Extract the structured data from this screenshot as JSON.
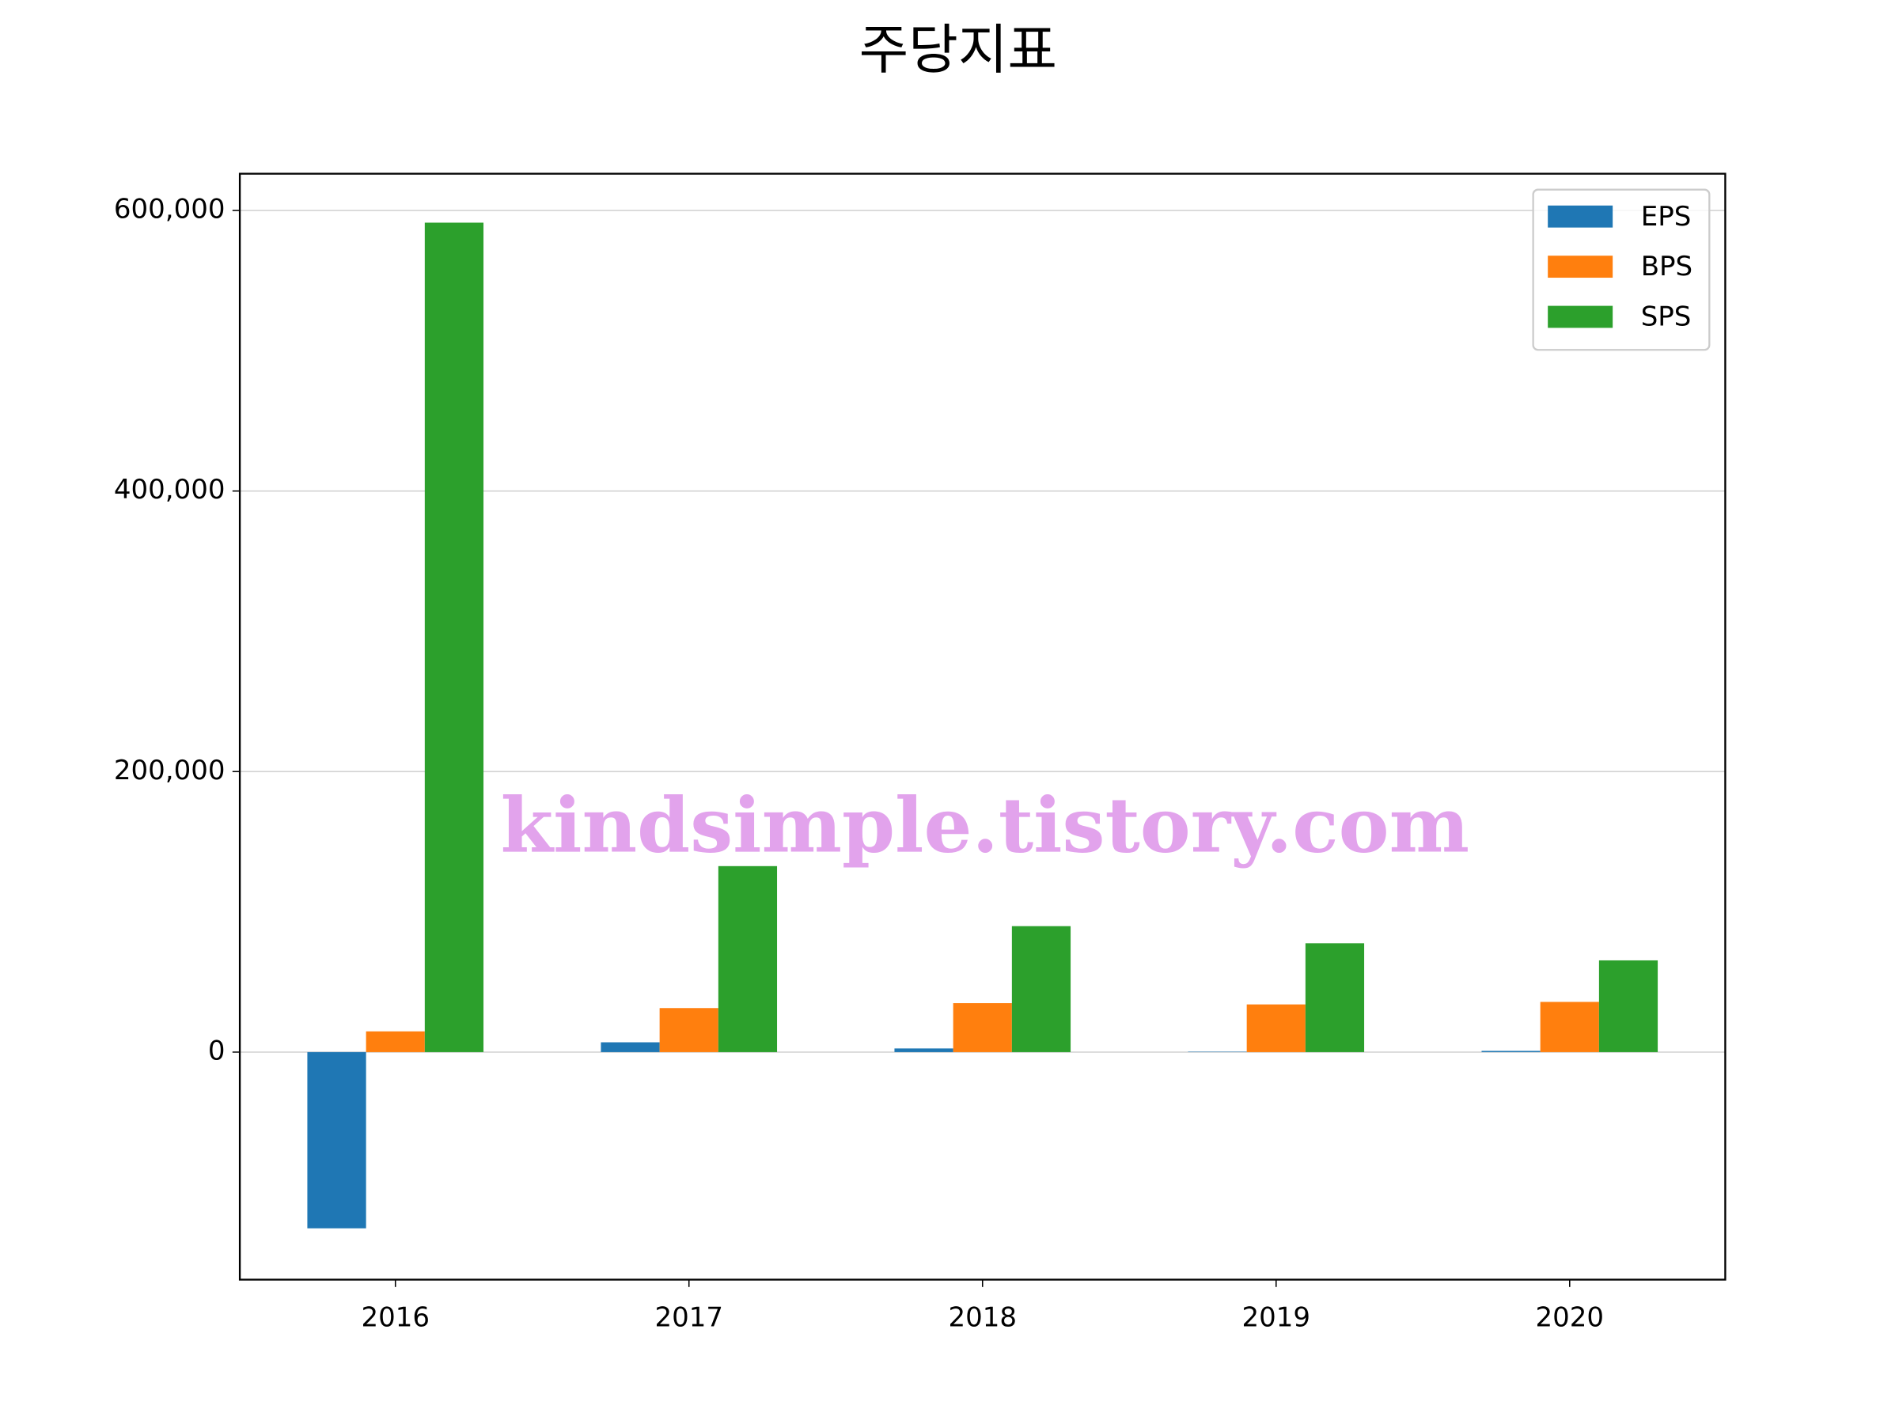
{
  "chart_data": {
    "type": "bar",
    "title": "주당지표",
    "categories": [
      "2016",
      "2017",
      "2018",
      "2019",
      "2020"
    ],
    "series": [
      {
        "name": "EPS",
        "color": "#1f77b4",
        "values": [
          -125600,
          7000,
          2600,
          300,
          900
        ]
      },
      {
        "name": "BPS",
        "color": "#ff7f0e",
        "values": [
          14800,
          31400,
          34900,
          34000,
          35800
        ]
      },
      {
        "name": "SPS",
        "color": "#2ca02c",
        "values": [
          591300,
          132600,
          89800,
          77600,
          65400
        ]
      }
    ],
    "ylim": [
      -162200,
      626200
    ],
    "yticks": [
      0,
      {
        "value": 200000,
        "label": "200,000"
      },
      {
        "value": 400000,
        "label": "400,000"
      },
      {
        "value": 600000,
        "label": "600,000"
      }
    ],
    "grid": true,
    "legend": "upper right",
    "watermark": "kindsimple.tistory.com"
  }
}
